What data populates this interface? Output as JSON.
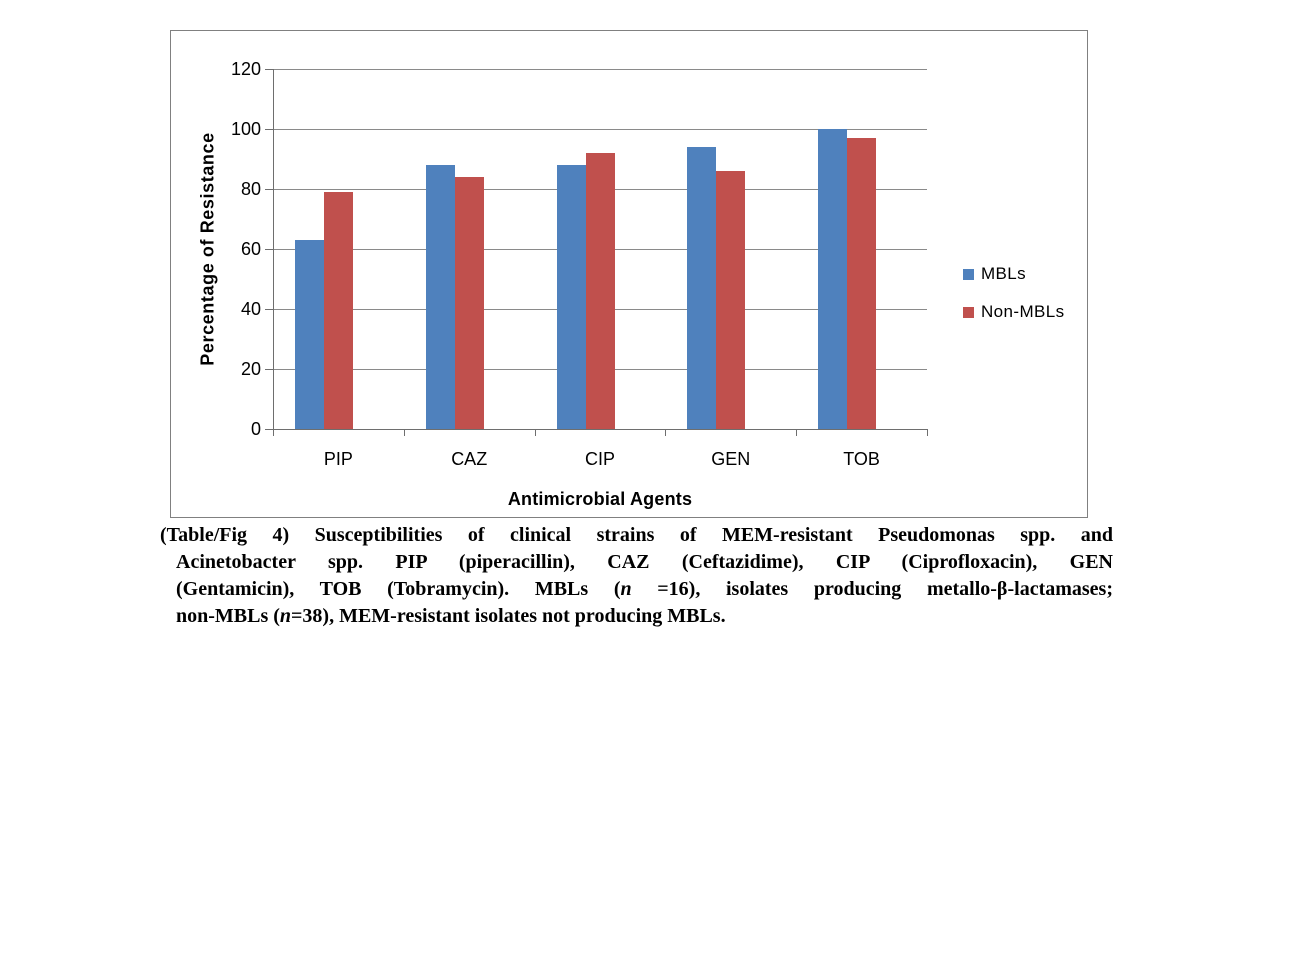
{
  "chart_data": {
    "type": "bar",
    "title": "",
    "categories": [
      "PIP",
      "CAZ",
      "CIP",
      "GEN",
      "TOB"
    ],
    "series": [
      {
        "name": "MBLs",
        "color": "#4f81bd",
        "values": [
          63,
          88,
          88,
          94,
          100
        ]
      },
      {
        "name": "Non-MBLs",
        "color": "#c0504d",
        "values": [
          79,
          84,
          92,
          86,
          97
        ]
      }
    ],
    "xlabel": "Antimicrobial Agents",
    "ylabel": "Percentage of Resistance",
    "ylim": [
      0,
      120
    ],
    "y_ticks": [
      0,
      20,
      40,
      60,
      80,
      100,
      120
    ],
    "grid": true,
    "legend_position": "right",
    "bar_color_mbls": "#4f81bd",
    "bar_color_non_mbls": "#c0504d"
  },
  "caption": {
    "line1": "(Table/Fig 4)  Susceptibilities of clinical strains of MEM-resistant Pseudomonas spp. and",
    "line2": "Acinetobacter spp. PIP (piperacillin), CAZ (Ceftazidime), CIP (Ciprofloxacin), GEN",
    "line3a": "(Gentamicin), TOB (Tobramycin). MBLs (",
    "line3n": "n",
    "line3b": " =16), isolates producing metallo-β-lactamases;",
    "line4a": "non-MBLs (",
    "line4n": "n",
    "line4b": "=38), MEM-resistant isolates not producing MBLs."
  }
}
